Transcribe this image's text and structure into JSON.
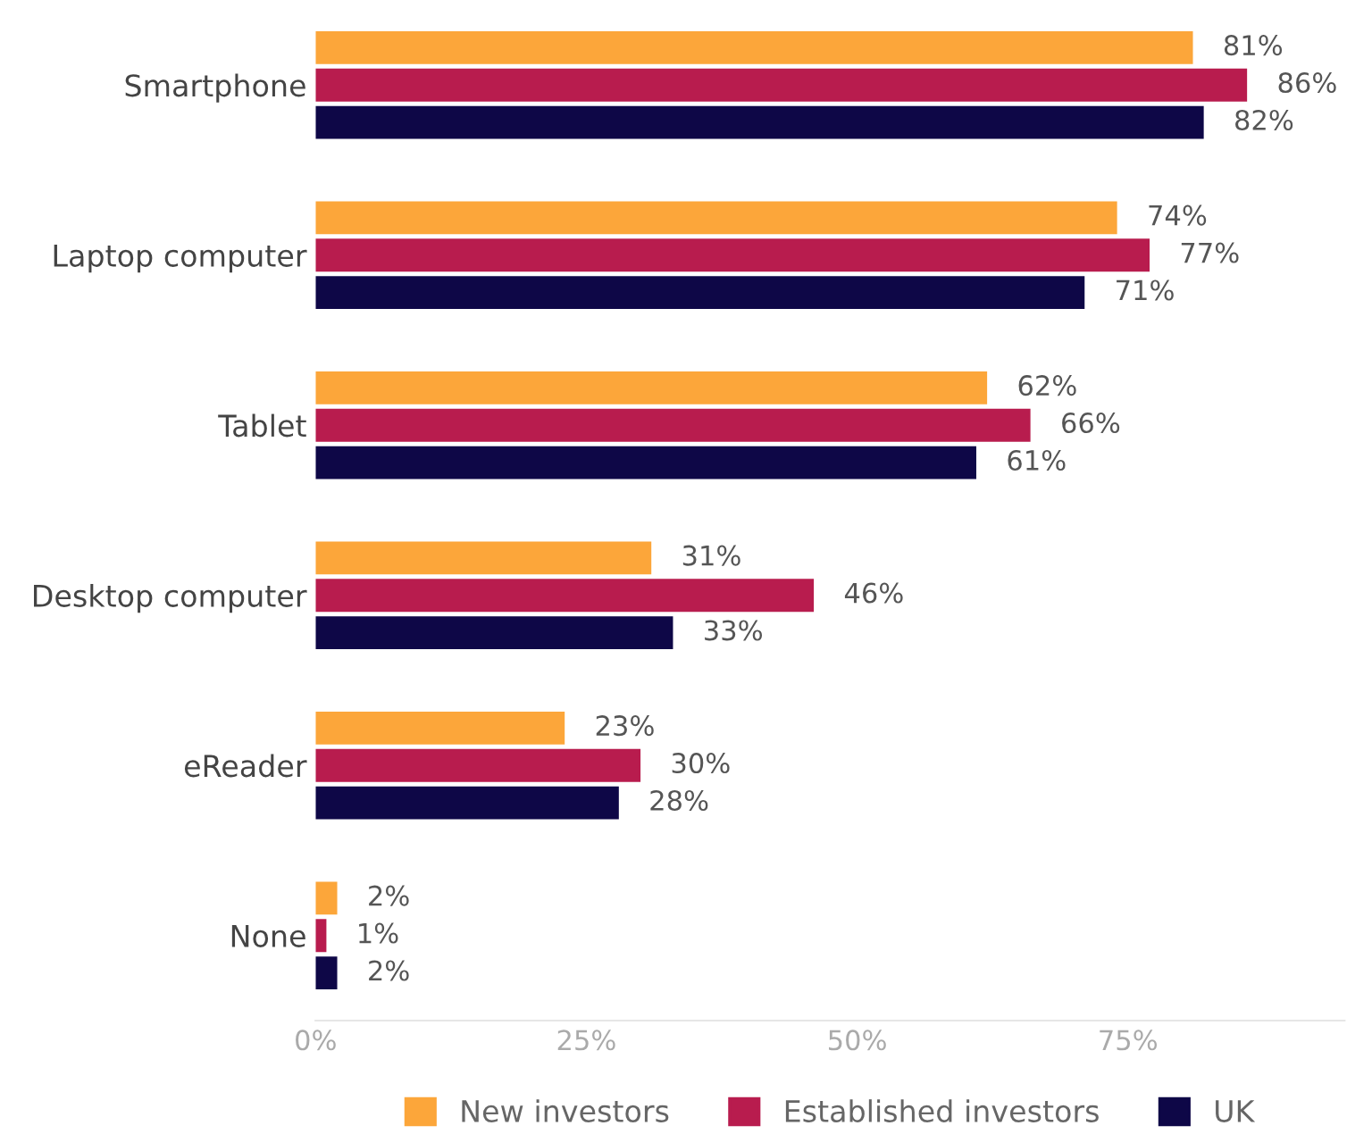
{
  "chart_data": {
    "type": "bar",
    "orientation": "horizontal",
    "categories": [
      "Smartphone",
      "Laptop computer",
      "Tablet",
      "Desktop computer",
      "eReader",
      "None"
    ],
    "series": [
      {
        "name": "New investors",
        "color": "#fca63a",
        "values": [
          81,
          74,
          62,
          31,
          23,
          2
        ],
        "value_labels": [
          "81%",
          "74%",
          "62%",
          "31%",
          "23%",
          "2%"
        ]
      },
      {
        "name": "Established investors",
        "color": "#b81c4e",
        "values": [
          86,
          77,
          66,
          46,
          30,
          1
        ],
        "value_labels": [
          "86%",
          "77%",
          "66%",
          "46%",
          "30%",
          "1%"
        ]
      },
      {
        "name": "UK",
        "color": "#0e0747",
        "values": [
          82,
          71,
          61,
          33,
          28,
          2
        ],
        "value_labels": [
          "82%",
          "71%",
          "61%",
          "33%",
          "28%",
          "2%"
        ]
      }
    ],
    "xlim": [
      0,
      95
    ],
    "xticks": [
      {
        "value": 0,
        "label": "0%"
      },
      {
        "value": 25,
        "label": "25%"
      },
      {
        "value": 50,
        "label": "50%"
      },
      {
        "value": 75,
        "label": "75%"
      }
    ],
    "grid": false,
    "legend": "bottom"
  }
}
